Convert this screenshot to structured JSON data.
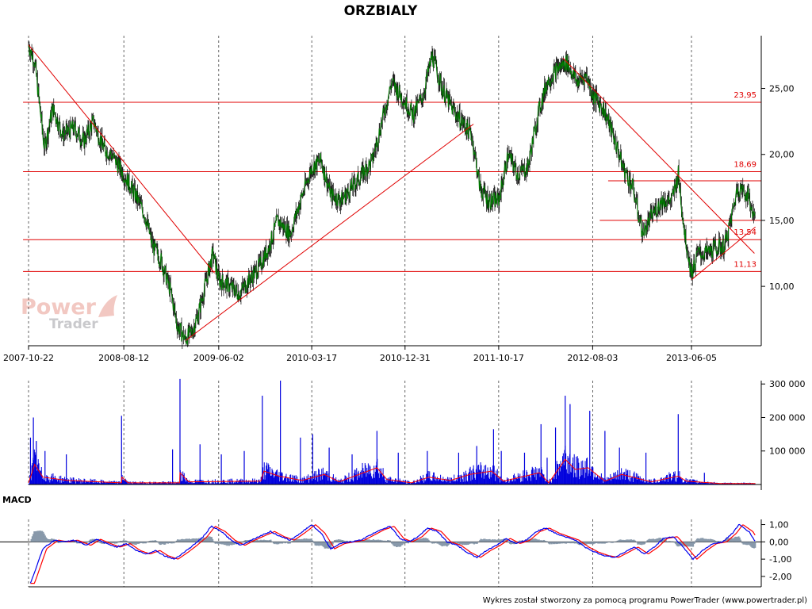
{
  "title": "ORZBIALY",
  "footer": "Wykres został stworzony za pomocą programu PowerTrader (www.powertrader.pl)",
  "watermark": {
    "line1": "Power",
    "line2": "Trader"
  },
  "colors": {
    "price_series": "#007a00",
    "price_wick": "#000000",
    "level_line": "#e00000",
    "volume_bar": "#0000dd",
    "volume_avg": "#ff0000",
    "macd_line": "#0000ee",
    "signal_line": "#ff0000",
    "histogram": "#8899aa",
    "grid": "#000000"
  },
  "chart_data": [
    {
      "type": "line",
      "panel": "price",
      "title": "ORZBIALY",
      "x_tick_labels": [
        "2007-10-22",
        "2008-08-12",
        "2009-06-02",
        "2010-03-17",
        "2010-12-31",
        "2011-10-17",
        "2012-08-03",
        "2013-06-05"
      ],
      "y_tick_labels": [
        "10,00",
        "15,00",
        "20,00",
        "25,00"
      ],
      "ylim": [
        5.5,
        29
      ],
      "grid": "vertical dashed",
      "price_points": [
        [
          "2007-10-22",
          28.3
        ],
        [
          "2007-11-10",
          27.0
        ],
        [
          "2007-12-10",
          20.5
        ],
        [
          "2008-01-05",
          23.5
        ],
        [
          "2008-02-05",
          21.5
        ],
        [
          "2008-03-10",
          22.0
        ],
        [
          "2008-04-10",
          21.0
        ],
        [
          "2008-05-10",
          22.5
        ],
        [
          "2008-06-10",
          20.5
        ],
        [
          "2008-07-05",
          20.0
        ],
        [
          "2008-08-12",
          18.5
        ],
        [
          "2008-09-15",
          17.0
        ],
        [
          "2008-10-15",
          15.5
        ],
        [
          "2008-11-10",
          13.0
        ],
        [
          "2008-12-05",
          12.0
        ],
        [
          "2009-01-05",
          9.5
        ],
        [
          "2009-01-25",
          7.0
        ],
        [
          "2009-02-18",
          6.0
        ],
        [
          "2009-03-10",
          6.5
        ],
        [
          "2009-04-01",
          8.0
        ],
        [
          "2009-04-25",
          10.5
        ],
        [
          "2009-05-15",
          12.5
        ],
        [
          "2009-06-02",
          10.5
        ],
        [
          "2009-07-05",
          10.0
        ],
        [
          "2009-08-05",
          9.5
        ],
        [
          "2009-09-05",
          10.5
        ],
        [
          "2009-10-05",
          11.5
        ],
        [
          "2009-11-05",
          13.0
        ],
        [
          "2009-12-01",
          15.0
        ],
        [
          "2010-01-10",
          14.0
        ],
        [
          "2010-02-10",
          16.5
        ],
        [
          "2010-03-17",
          19.0
        ],
        [
          "2010-04-15",
          19.5
        ],
        [
          "2010-05-15",
          17.0
        ],
        [
          "2010-06-15",
          16.5
        ],
        [
          "2010-07-20",
          17.5
        ],
        [
          "2010-08-20",
          18.5
        ],
        [
          "2010-09-20",
          19.5
        ],
        [
          "2010-10-20",
          22.5
        ],
        [
          "2010-11-20",
          25.5
        ],
        [
          "2010-12-31",
          24.0
        ],
        [
          "2011-01-25",
          23.0
        ],
        [
          "2011-02-25",
          24.5
        ],
        [
          "2011-03-25",
          27.5
        ],
        [
          "2011-04-25",
          25.0
        ],
        [
          "2011-05-25",
          23.5
        ],
        [
          "2011-06-25",
          22.5
        ],
        [
          "2011-07-25",
          21.5
        ],
        [
          "2011-08-20",
          17.5
        ],
        [
          "2011-09-15",
          16.5
        ],
        [
          "2011-10-17",
          16.5
        ],
        [
          "2011-11-15",
          20.0
        ],
        [
          "2011-12-15",
          18.5
        ],
        [
          "2012-01-15",
          19.0
        ],
        [
          "2012-02-15",
          23.0
        ],
        [
          "2012-03-15",
          25.5
        ],
        [
          "2012-04-15",
          26.5
        ],
        [
          "2012-05-15",
          27.0
        ],
        [
          "2012-06-15",
          25.5
        ],
        [
          "2012-07-15",
          26.0
        ],
        [
          "2012-08-03",
          24.5
        ],
        [
          "2012-09-05",
          23.5
        ],
        [
          "2012-10-05",
          21.5
        ],
        [
          "2012-11-05",
          19.0
        ],
        [
          "2012-12-05",
          17.5
        ],
        [
          "2013-01-05",
          14.0
        ],
        [
          "2013-02-05",
          15.5
        ],
        [
          "2013-03-05",
          16.5
        ],
        [
          "2013-04-05",
          16.5
        ],
        [
          "2013-04-25",
          18.5
        ],
        [
          "2013-05-15",
          14.0
        ],
        [
          "2013-06-05",
          11.0
        ],
        [
          "2013-06-25",
          12.5
        ],
        [
          "2013-07-25",
          12.5
        ],
        [
          "2013-08-25",
          13.0
        ],
        [
          "2013-09-15",
          13.0
        ],
        [
          "2013-10-05",
          15.0
        ],
        [
          "2013-10-25",
          17.5
        ],
        [
          "2013-11-25",
          17.0
        ],
        [
          "2013-12-20",
          15.0
        ]
      ],
      "horizontal_levels": [
        {
          "value": 23.95,
          "label": "23,95",
          "from": "2007-10-05",
          "to": "2014-01-10"
        },
        {
          "value": 18.69,
          "label": "18,69",
          "from": "2007-10-05",
          "to": "2014-01-10"
        },
        {
          "value": 13.54,
          "label": "13,54",
          "from": "2007-10-05",
          "to": "2014-01-10"
        },
        {
          "value": 11.13,
          "label": "11,13",
          "from": "2007-10-05",
          "to": "2014-01-10"
        },
        {
          "value": 18.0,
          "label": "",
          "from": "2012-09-20",
          "to": "2014-01-10"
        },
        {
          "value": 15.0,
          "label": "",
          "from": "2012-08-25",
          "to": "2014-01-10"
        }
      ],
      "trend_lines": [
        {
          "from": [
            "2007-10-22",
            28.3
          ],
          "to": [
            "2009-05-20",
            11.0
          ]
        },
        {
          "from": [
            "2009-02-20",
            5.9
          ],
          "to": [
            "2011-07-31",
            22.3
          ]
        },
        {
          "from": [
            "2012-05-03",
            27.3
          ],
          "to": [
            "2013-12-17",
            12.5
          ]
        },
        {
          "from": [
            "2013-06-05",
            10.5
          ],
          "to": [
            "2013-12-20",
            14.5
          ]
        }
      ]
    },
    {
      "type": "bar",
      "panel": "volume",
      "y_tick_labels": [
        "100 000",
        "200 000",
        "300 000"
      ],
      "ylim": [
        0,
        310000
      ],
      "spikes": [
        [
          "2007-10-28",
          140000
        ],
        [
          "2007-11-06",
          200000
        ],
        [
          "2007-11-15",
          130000
        ],
        [
          "2007-12-12",
          100000
        ],
        [
          "2008-02-16",
          90000
        ],
        [
          "2008-08-05",
          205000
        ],
        [
          "2009-01-10",
          105000
        ],
        [
          "2009-02-02",
          315000
        ],
        [
          "2009-04-05",
          120000
        ],
        [
          "2009-06-10",
          90000
        ],
        [
          "2009-08-20",
          100000
        ],
        [
          "2009-10-15",
          265000
        ],
        [
          "2009-12-10",
          310000
        ],
        [
          "2010-02-10",
          140000
        ],
        [
          "2010-03-20",
          150000
        ],
        [
          "2010-05-10",
          110000
        ],
        [
          "2010-07-20",
          90000
        ],
        [
          "2010-10-05",
          160000
        ],
        [
          "2010-12-10",
          95000
        ],
        [
          "2011-03-10",
          100000
        ],
        [
          "2011-06-15",
          95000
        ],
        [
          "2011-08-10",
          115000
        ],
        [
          "2011-10-01",
          165000
        ],
        [
          "2011-10-25",
          100000
        ],
        [
          "2012-01-05",
          95000
        ],
        [
          "2012-02-25",
          180000
        ],
        [
          "2012-03-15",
          80000
        ],
        [
          "2012-04-10",
          170000
        ],
        [
          "2012-05-10",
          265000
        ],
        [
          "2012-05-25",
          240000
        ],
        [
          "2012-07-25",
          220000
        ],
        [
          "2012-09-10",
          160000
        ],
        [
          "2012-10-25",
          110000
        ],
        [
          "2013-01-15",
          95000
        ],
        [
          "2013-04-25",
          210000
        ],
        [
          "2013-07-15",
          35000
        ]
      ],
      "average_line_segments": [
        [
          "2007-10-22",
          5000
        ],
        [
          "2007-11-10",
          60000
        ],
        [
          "2007-12-05",
          22000
        ],
        [
          "2008-02-20",
          12000
        ],
        [
          "2008-08-05",
          5000
        ],
        [
          "2008-08-06",
          22000
        ],
        [
          "2008-08-25",
          5000
        ],
        [
          "2009-02-01",
          5000
        ],
        [
          "2009-02-02",
          35000
        ],
        [
          "2009-03-01",
          8000
        ],
        [
          "2009-10-10",
          10000
        ],
        [
          "2009-10-20",
          40000
        ],
        [
          "2009-12-05",
          25000
        ],
        [
          "2010-02-15",
          12000
        ],
        [
          "2010-04-25",
          30000
        ],
        [
          "2010-06-10",
          8000
        ],
        [
          "2010-10-05",
          50000
        ],
        [
          "2010-11-05",
          15000
        ],
        [
          "2011-01-20",
          5000
        ],
        [
          "2011-03-15",
          22000
        ],
        [
          "2011-05-20",
          12000
        ],
        [
          "2011-07-20",
          30000
        ],
        [
          "2011-09-25",
          40000
        ],
        [
          "2011-11-01",
          10000
        ],
        [
          "2012-02-20",
          35000
        ],
        [
          "2012-03-20",
          5000
        ],
        [
          "2012-05-10",
          75000
        ],
        [
          "2012-06-10",
          45000
        ],
        [
          "2012-07-20",
          50000
        ],
        [
          "2012-09-10",
          10000
        ],
        [
          "2012-11-01",
          30000
        ],
        [
          "2013-02-01",
          8000
        ],
        [
          "2013-04-25",
          25000
        ],
        [
          "2013-05-20",
          10000
        ],
        [
          "2013-09-01",
          3000
        ],
        [
          "2013-12-20",
          3000
        ]
      ]
    },
    {
      "type": "line",
      "panel": "macd",
      "label": "MACD",
      "y_tick_labels": [
        "1,00",
        "0,00",
        "-1,00",
        "-2,00"
      ],
      "ylim": [
        -2.6,
        1.3
      ],
      "macd": [
        [
          "2007-10-28",
          -2.4
        ],
        [
          "2007-11-05",
          -2.0
        ],
        [
          "2007-11-20",
          -1.2
        ],
        [
          "2007-12-05",
          -0.4
        ],
        [
          "2008-01-10",
          0.1
        ],
        [
          "2008-02-10",
          0.0
        ],
        [
          "2008-03-10",
          0.1
        ],
        [
          "2008-04-20",
          -0.2
        ],
        [
          "2008-05-20",
          0.15
        ],
        [
          "2008-06-20",
          -0.1
        ],
        [
          "2008-07-20",
          -0.3
        ],
        [
          "2008-08-20",
          -0.1
        ],
        [
          "2008-09-20",
          -0.5
        ],
        [
          "2008-10-20",
          -0.7
        ],
        [
          "2008-11-20",
          -0.5
        ],
        [
          "2008-12-15",
          -0.8
        ],
        [
          "2009-01-15",
          -1.0
        ],
        [
          "2009-02-15",
          -0.6
        ],
        [
          "2009-03-15",
          -0.2
        ],
        [
          "2009-04-15",
          0.3
        ],
        [
          "2009-05-10",
          0.9
        ],
        [
          "2009-06-10",
          0.6
        ],
        [
          "2009-07-10",
          0.1
        ],
        [
          "2009-08-10",
          -0.2
        ],
        [
          "2009-09-10",
          0.1
        ],
        [
          "2009-10-10",
          0.35
        ],
        [
          "2009-11-10",
          0.6
        ],
        [
          "2009-12-10",
          0.3
        ],
        [
          "2010-01-10",
          0.1
        ],
        [
          "2010-02-10",
          0.5
        ],
        [
          "2010-03-17",
          1.0
        ],
        [
          "2010-04-15",
          0.5
        ],
        [
          "2010-05-15",
          -0.4
        ],
        [
          "2010-06-15",
          -0.1
        ],
        [
          "2010-07-15",
          0.0
        ],
        [
          "2010-08-15",
          0.1
        ],
        [
          "2010-09-15",
          0.4
        ],
        [
          "2010-10-15",
          0.7
        ],
        [
          "2010-11-15",
          0.9
        ],
        [
          "2010-12-15",
          0.2
        ],
        [
          "2011-01-10",
          0.0
        ],
        [
          "2011-02-10",
          0.3
        ],
        [
          "2011-03-10",
          0.8
        ],
        [
          "2011-04-10",
          0.6
        ],
        [
          "2011-05-10",
          0.0
        ],
        [
          "2011-06-10",
          -0.2
        ],
        [
          "2011-07-10",
          -0.6
        ],
        [
          "2011-08-10",
          -0.9
        ],
        [
          "2011-09-10",
          -0.5
        ],
        [
          "2011-10-10",
          -0.2
        ],
        [
          "2011-11-10",
          0.2
        ],
        [
          "2011-12-10",
          -0.1
        ],
        [
          "2012-01-10",
          0.1
        ],
        [
          "2012-02-10",
          0.6
        ],
        [
          "2012-03-10",
          0.8
        ],
        [
          "2012-04-10",
          0.5
        ],
        [
          "2012-05-10",
          0.3
        ],
        [
          "2012-06-10",
          0.1
        ],
        [
          "2012-07-10",
          -0.3
        ],
        [
          "2012-08-10",
          -0.6
        ],
        [
          "2012-09-10",
          -0.8
        ],
        [
          "2012-10-10",
          -0.9
        ],
        [
          "2012-11-10",
          -0.6
        ],
        [
          "2012-12-10",
          -0.3
        ],
        [
          "2013-01-10",
          -0.7
        ],
        [
          "2013-02-10",
          -0.3
        ],
        [
          "2013-03-10",
          0.2
        ],
        [
          "2013-04-10",
          0.3
        ],
        [
          "2013-05-10",
          -0.3
        ],
        [
          "2013-06-10",
          -1.0
        ],
        [
          "2013-07-10",
          -0.5
        ],
        [
          "2013-08-10",
          -0.1
        ],
        [
          "2013-09-10",
          0.0
        ],
        [
          "2013-10-10",
          0.5
        ],
        [
          "2013-10-30",
          1.0
        ],
        [
          "2013-11-30",
          0.6
        ],
        [
          "2013-12-20",
          0.0
        ]
      ],
      "signal_lag_days": 12
    }
  ]
}
